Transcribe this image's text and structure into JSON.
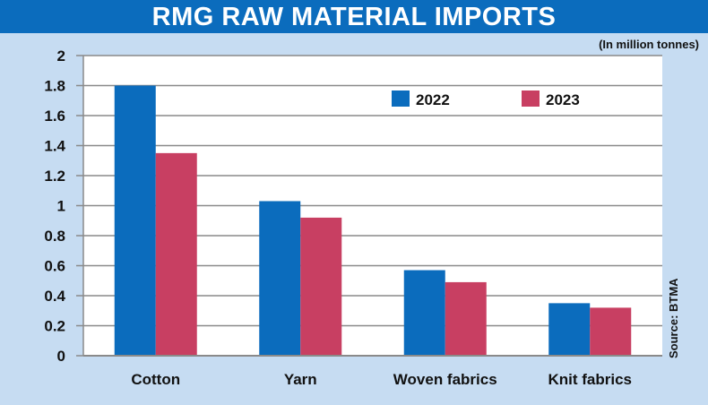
{
  "chart_data": {
    "type": "bar",
    "title": "RMG RAW MATERIAL IMPORTS",
    "subtitle": "(In million tonnes)",
    "source": "Source: BTMA",
    "categories": [
      "Cotton",
      "Yarn",
      "Woven fabrics",
      "Knit fabrics"
    ],
    "series": [
      {
        "name": "2022",
        "color": "#0b6cbd",
        "values": [
          1.8,
          1.03,
          0.57,
          0.35
        ]
      },
      {
        "name": "2023",
        "color": "#c83f62",
        "values": [
          1.35,
          0.92,
          0.49,
          0.32
        ]
      }
    ],
    "yticks": [
      "0",
      "0.2",
      "0.4",
      "0.6",
      "0.8",
      "1",
      "1.2",
      "1.4",
      "1.6",
      "1.8",
      "2"
    ],
    "ylim": [
      0,
      2
    ],
    "grid": true,
    "legend": "top-right"
  }
}
